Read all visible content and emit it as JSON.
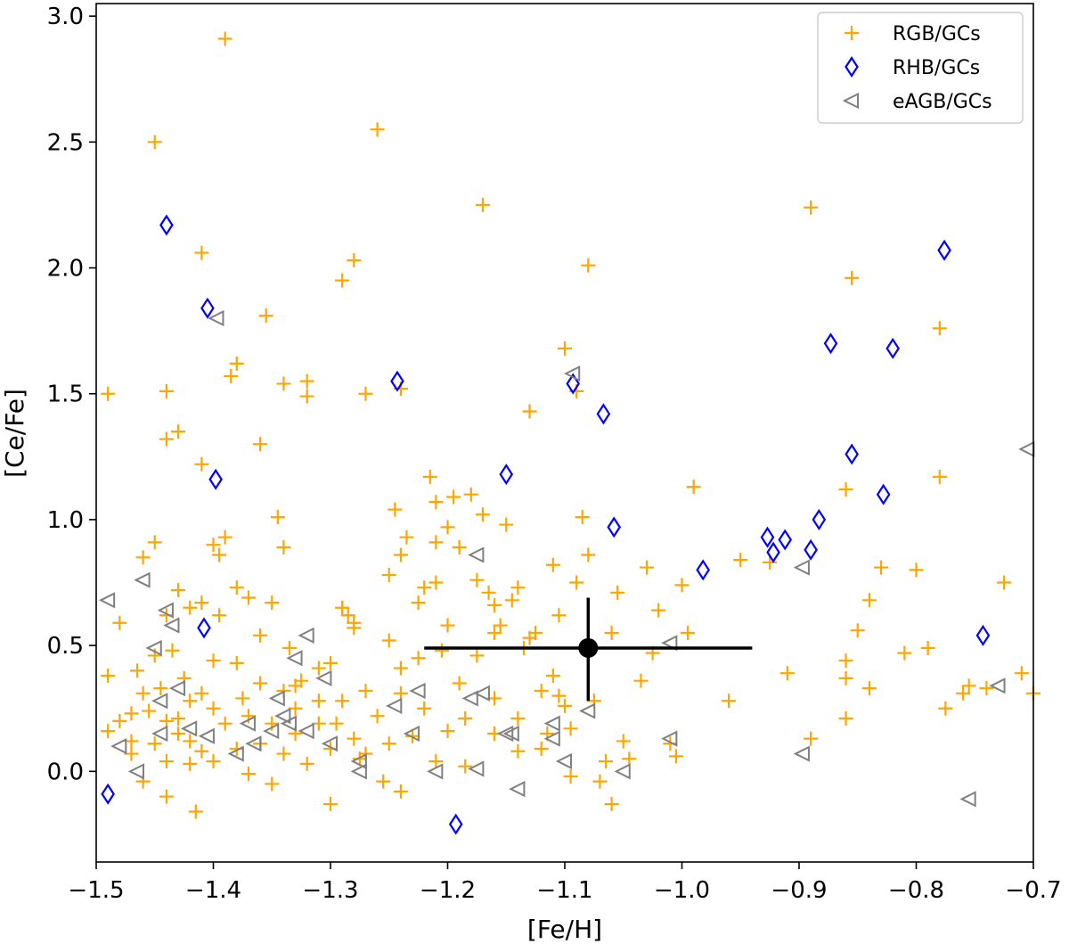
{
  "chart_data": {
    "type": "scatter",
    "xlabel": "[Fe/H]",
    "ylabel": "[Ce/Fe]",
    "xlim": [
      -1.5,
      -0.7
    ],
    "ylim": [
      -0.36,
      3.05
    ],
    "xticks": [
      -1.5,
      -1.4,
      -1.3,
      -1.2,
      -1.1,
      -1.0,
      -0.9,
      -0.8,
      -0.7
    ],
    "xtick_labels": [
      "−1.5",
      "−1.4",
      "−1.3",
      "−1.2",
      "−1.1",
      "−1.0",
      "−0.9",
      "−0.8",
      "−0.7"
    ],
    "yticks": [
      0.0,
      0.5,
      1.0,
      1.5,
      2.0,
      2.5,
      3.0
    ],
    "ytick_labels": [
      "0.0",
      "0.5",
      "1.0",
      "1.5",
      "2.0",
      "2.5",
      "3.0"
    ],
    "grid": false,
    "legend_position": "top-right",
    "series": [
      {
        "name": "RGB/GCs",
        "marker": "plus",
        "color": "#ffa500",
        "points": [
          [
            -1.49,
            1.5
          ],
          [
            -1.49,
            0.38
          ],
          [
            -1.49,
            0.16
          ],
          [
            -1.48,
            0.59
          ],
          [
            -1.47,
            0.23
          ],
          [
            -1.47,
            0.12
          ],
          [
            -1.46,
            0.85
          ],
          [
            -1.46,
            0.31
          ],
          [
            -1.46,
            -0.04
          ],
          [
            -1.455,
            0.24
          ],
          [
            -1.45,
            0.91
          ],
          [
            -1.45,
            0.46
          ],
          [
            -1.45,
            0.11
          ],
          [
            -1.445,
            0.33
          ],
          [
            -1.44,
            1.32
          ],
          [
            -1.44,
            0.62
          ],
          [
            -1.44,
            0.2
          ],
          [
            -1.44,
            0.04
          ],
          [
            -1.44,
            -0.1
          ],
          [
            -1.435,
            0.48
          ],
          [
            -1.43,
            1.35
          ],
          [
            -1.43,
            0.21
          ],
          [
            -1.43,
            0.15
          ],
          [
            -1.425,
            0.37
          ],
          [
            -1.42,
            0.28
          ],
          [
            -1.42,
            0.12
          ],
          [
            -1.42,
            0.03
          ],
          [
            -1.415,
            -0.16
          ],
          [
            -1.41,
            1.22
          ],
          [
            -1.41,
            0.67
          ],
          [
            -1.41,
            0.31
          ],
          [
            -1.41,
            0.08
          ],
          [
            -1.4,
            0.9
          ],
          [
            -1.4,
            0.44
          ],
          [
            -1.4,
            0.25
          ],
          [
            -1.4,
            0.04
          ],
          [
            -1.395,
            0.86
          ],
          [
            -1.39,
            0.93
          ],
          [
            -1.39,
            0.19
          ],
          [
            -1.385,
            1.57
          ],
          [
            -1.38,
            1.62
          ],
          [
            -1.38,
            0.73
          ],
          [
            -1.38,
            0.43
          ],
          [
            -1.38,
            0.09
          ],
          [
            -1.375,
            0.29
          ],
          [
            -1.37,
            0.69
          ],
          [
            -1.37,
            0.22
          ],
          [
            -1.37,
            -0.01
          ],
          [
            -1.36,
            1.3
          ],
          [
            -1.36,
            0.54
          ],
          [
            -1.36,
            0.35
          ],
          [
            -1.36,
            0.11
          ],
          [
            -1.355,
            1.81
          ],
          [
            -1.35,
            0.67
          ],
          [
            -1.35,
            0.19
          ],
          [
            -1.35,
            -0.05
          ],
          [
            -1.345,
            1.01
          ],
          [
            -1.34,
            1.54
          ],
          [
            -1.34,
            0.89
          ],
          [
            -1.34,
            0.32
          ],
          [
            -1.34,
            0.07
          ],
          [
            -1.335,
            0.49
          ],
          [
            -1.33,
            0.25
          ],
          [
            -1.33,
            0.15
          ],
          [
            -1.325,
            0.36
          ],
          [
            -1.32,
            1.55
          ],
          [
            -1.32,
            1.49
          ],
          [
            -1.32,
            0.03
          ],
          [
            -1.31,
            0.41
          ],
          [
            -1.31,
            0.19
          ],
          [
            -1.3,
            0.43
          ],
          [
            -1.3,
            0.09
          ],
          [
            -1.3,
            -0.13
          ],
          [
            -1.29,
            1.95
          ],
          [
            -1.29,
            0.65
          ],
          [
            -1.29,
            0.28
          ],
          [
            -1.28,
            2.03
          ],
          [
            -1.285,
            0.62
          ],
          [
            -1.28,
            0.59
          ],
          [
            -1.28,
            0.57
          ],
          [
            -1.28,
            0.13
          ],
          [
            -1.275,
            0.05
          ],
          [
            -1.27,
            1.5
          ],
          [
            -1.27,
            0.32
          ],
          [
            -1.26,
            2.55
          ],
          [
            -1.26,
            0.22
          ],
          [
            -1.255,
            -0.04
          ],
          [
            -1.25,
            0.78
          ],
          [
            -1.25,
            0.52
          ],
          [
            -1.25,
            0.11
          ],
          [
            -1.245,
            1.04
          ],
          [
            -1.24,
            1.52
          ],
          [
            -1.24,
            0.86
          ],
          [
            -1.24,
            0.41
          ],
          [
            -1.24,
            -0.08
          ],
          [
            -1.235,
            0.93
          ],
          [
            -1.23,
            0.14
          ],
          [
            -1.225,
            0.67
          ],
          [
            -1.22,
            0.73
          ],
          [
            -1.22,
            0.25
          ],
          [
            -1.215,
            1.17
          ],
          [
            -1.21,
            1.07
          ],
          [
            -1.21,
            0.91
          ],
          [
            -1.21,
            0.75
          ],
          [
            -1.21,
            0.04
          ],
          [
            -1.205,
            0.48
          ],
          [
            -1.2,
            0.97
          ],
          [
            -1.2,
            0.16
          ],
          [
            -1.195,
            1.09
          ],
          [
            -1.19,
            0.89
          ],
          [
            -1.19,
            0.35
          ],
          [
            -1.185,
            0.21
          ],
          [
            -1.18,
            1.1
          ],
          [
            -1.175,
            0.76
          ],
          [
            -1.175,
            0.46
          ],
          [
            -1.17,
            2.25
          ],
          [
            -1.17,
            1.02
          ],
          [
            -1.165,
            0.71
          ],
          [
            -1.16,
            0.66
          ],
          [
            -1.16,
            0.29
          ],
          [
            -1.155,
            0.58
          ],
          [
            -1.15,
            0.98
          ],
          [
            -1.145,
            0.68
          ],
          [
            -1.14,
            0.73
          ],
          [
            -1.14,
            0.21
          ],
          [
            -1.135,
            0.49
          ],
          [
            -1.13,
            1.43
          ],
          [
            -1.125,
            0.55
          ],
          [
            -1.12,
            0.32
          ],
          [
            -1.12,
            0.09
          ],
          [
            -1.115,
            0.15
          ],
          [
            -1.11,
            0.38
          ],
          [
            -1.11,
            0.82
          ],
          [
            -1.105,
            0.62
          ],
          [
            -1.1,
            1.68
          ],
          [
            -1.1,
            0.26
          ],
          [
            -1.095,
            0.17
          ],
          [
            -1.09,
            1.51
          ],
          [
            -1.085,
            1.01
          ],
          [
            -1.08,
            2.01
          ],
          [
            -1.08,
            0.86
          ],
          [
            -1.075,
            0.28
          ],
          [
            -1.07,
            -0.04
          ],
          [
            -1.065,
            0.04
          ],
          [
            -1.06,
            -0.13
          ],
          [
            -1.055,
            0.71
          ],
          [
            -1.05,
            0.12
          ],
          [
            -1.045,
            0.05
          ],
          [
            -1.035,
            0.36
          ],
          [
            -1.03,
            0.81
          ],
          [
            -1.025,
            0.47
          ],
          [
            -1.02,
            0.64
          ],
          [
            -1.01,
            0.11
          ],
          [
            -1.005,
            0.06
          ],
          [
            -1.0,
            0.74
          ],
          [
            -0.995,
            0.55
          ],
          [
            -0.99,
            1.13
          ],
          [
            -0.96,
            0.28
          ],
          [
            -0.95,
            0.84
          ],
          [
            -0.925,
            0.83
          ],
          [
            -0.91,
            0.39
          ],
          [
            -0.89,
            2.24
          ],
          [
            -0.89,
            0.13
          ],
          [
            -0.86,
            1.12
          ],
          [
            -0.86,
            0.21
          ],
          [
            -0.855,
            1.96
          ],
          [
            -0.85,
            0.56
          ],
          [
            -0.84,
            0.68
          ],
          [
            -0.83,
            0.81
          ],
          [
            -0.81,
            0.47
          ],
          [
            -0.8,
            0.8
          ],
          [
            -0.79,
            0.49
          ],
          [
            -0.78,
            1.76
          ],
          [
            -0.78,
            1.17
          ],
          [
            -0.775,
            0.25
          ],
          [
            -0.76,
            0.31
          ],
          [
            -0.755,
            0.34
          ],
          [
            -0.74,
            0.33
          ],
          [
            -0.725,
            0.75
          ],
          [
            -0.71,
            0.39
          ],
          [
            -0.7,
            0.31
          ],
          [
            -1.45,
            2.5
          ],
          [
            -1.39,
            2.91
          ],
          [
            -1.41,
            2.06
          ],
          [
            -1.44,
            1.51
          ],
          [
            -1.395,
            0.62
          ],
          [
            -1.16,
            0.55
          ],
          [
            -1.09,
            0.75
          ],
          [
            -1.06,
            0.55
          ],
          [
            -0.84,
            0.33
          ],
          [
            -0.86,
            0.44
          ],
          [
            -0.86,
            0.37
          ],
          [
            -1.43,
            0.72
          ],
          [
            -1.42,
            0.65
          ],
          [
            -1.465,
            0.4
          ],
          [
            -1.47,
            0.07
          ],
          [
            -1.48,
            0.2
          ],
          [
            -1.33,
            0.34
          ],
          [
            -1.31,
            0.28
          ],
          [
            -1.295,
            0.19
          ],
          [
            -1.27,
            0.07
          ],
          [
            -1.24,
            0.31
          ],
          [
            -1.225,
            0.45
          ],
          [
            -1.2,
            0.58
          ],
          [
            -1.185,
            0.02
          ],
          [
            -1.16,
            0.15
          ],
          [
            -1.14,
            0.08
          ],
          [
            -1.13,
            0.53
          ],
          [
            -1.105,
            0.3
          ],
          [
            -1.095,
            -0.02
          ]
        ]
      },
      {
        "name": "RHB/GCs",
        "marker": "diamond",
        "color": "#0000ff",
        "points": [
          [
            -1.44,
            2.17
          ],
          [
            -1.405,
            1.84
          ],
          [
            -1.398,
            1.16
          ],
          [
            -1.408,
            0.57
          ],
          [
            -1.49,
            -0.09
          ],
          [
            -1.243,
            1.55
          ],
          [
            -1.193,
            -0.21
          ],
          [
            -1.15,
            1.18
          ],
          [
            -1.093,
            1.54
          ],
          [
            -1.067,
            1.42
          ],
          [
            -1.058,
            0.97
          ],
          [
            -0.982,
            0.8
          ],
          [
            -0.927,
            0.93
          ],
          [
            -0.922,
            0.87
          ],
          [
            -0.912,
            0.92
          ],
          [
            -0.89,
            0.88
          ],
          [
            -0.883,
            1.0
          ],
          [
            -0.873,
            1.7
          ],
          [
            -0.855,
            1.26
          ],
          [
            -0.828,
            1.1
          ],
          [
            -0.82,
            1.68
          ],
          [
            -0.776,
            2.07
          ],
          [
            -0.743,
            0.54
          ]
        ]
      },
      {
        "name": "eAGB/GCs",
        "marker": "triangle-left",
        "color": "#808080",
        "points": [
          [
            -1.397,
            1.8
          ],
          [
            -1.093,
            1.58
          ],
          [
            -0.705,
            1.28
          ],
          [
            -1.175,
            0.86
          ],
          [
            -0.897,
            0.81
          ],
          [
            -1.49,
            0.68
          ],
          [
            -1.46,
            0.76
          ],
          [
            -1.44,
            0.64
          ],
          [
            -1.435,
            0.58
          ],
          [
            -1.45,
            0.49
          ],
          [
            -1.33,
            0.45
          ],
          [
            -1.32,
            0.54
          ],
          [
            -1.01,
            0.51
          ],
          [
            -1.445,
            0.28
          ],
          [
            -1.43,
            0.33
          ],
          [
            -1.42,
            0.17
          ],
          [
            -1.445,
            0.15
          ],
          [
            -1.405,
            0.14
          ],
          [
            -1.38,
            0.07
          ],
          [
            -1.37,
            0.19
          ],
          [
            -1.365,
            0.11
          ],
          [
            -1.35,
            0.16
          ],
          [
            -1.34,
            0.22
          ],
          [
            -1.345,
            0.29
          ],
          [
            -1.335,
            0.19
          ],
          [
            -1.32,
            0.16
          ],
          [
            -1.305,
            0.37
          ],
          [
            -1.3,
            0.11
          ],
          [
            -1.275,
            0.04
          ],
          [
            -1.275,
            0.0
          ],
          [
            -1.245,
            0.26
          ],
          [
            -1.225,
            0.32
          ],
          [
            -1.23,
            0.15
          ],
          [
            -1.21,
            0.0
          ],
          [
            -1.18,
            0.29
          ],
          [
            -1.17,
            0.31
          ],
          [
            -1.175,
            0.01
          ],
          [
            -1.15,
            0.15
          ],
          [
            -1.145,
            0.15
          ],
          [
            -1.14,
            -0.07
          ],
          [
            -1.11,
            0.13
          ],
          [
            -1.11,
            0.19
          ],
          [
            -1.1,
            0.04
          ],
          [
            -1.08,
            0.24
          ],
          [
            -1.05,
            0.0
          ],
          [
            -1.01,
            0.13
          ],
          [
            -0.897,
            0.07
          ],
          [
            -0.755,
            -0.11
          ],
          [
            -0.73,
            0.34
          ],
          [
            -1.48,
            0.1
          ],
          [
            -1.465,
            0.0
          ]
        ]
      },
      {
        "name": "",
        "marker": "errorbar",
        "color": "#000000",
        "points": [
          [
            -1.08,
            0.49
          ]
        ],
        "xerr": [
          [
            -1.22,
            -0.94
          ]
        ],
        "yerr": [
          [
            0.28,
            0.69
          ]
        ]
      }
    ]
  }
}
